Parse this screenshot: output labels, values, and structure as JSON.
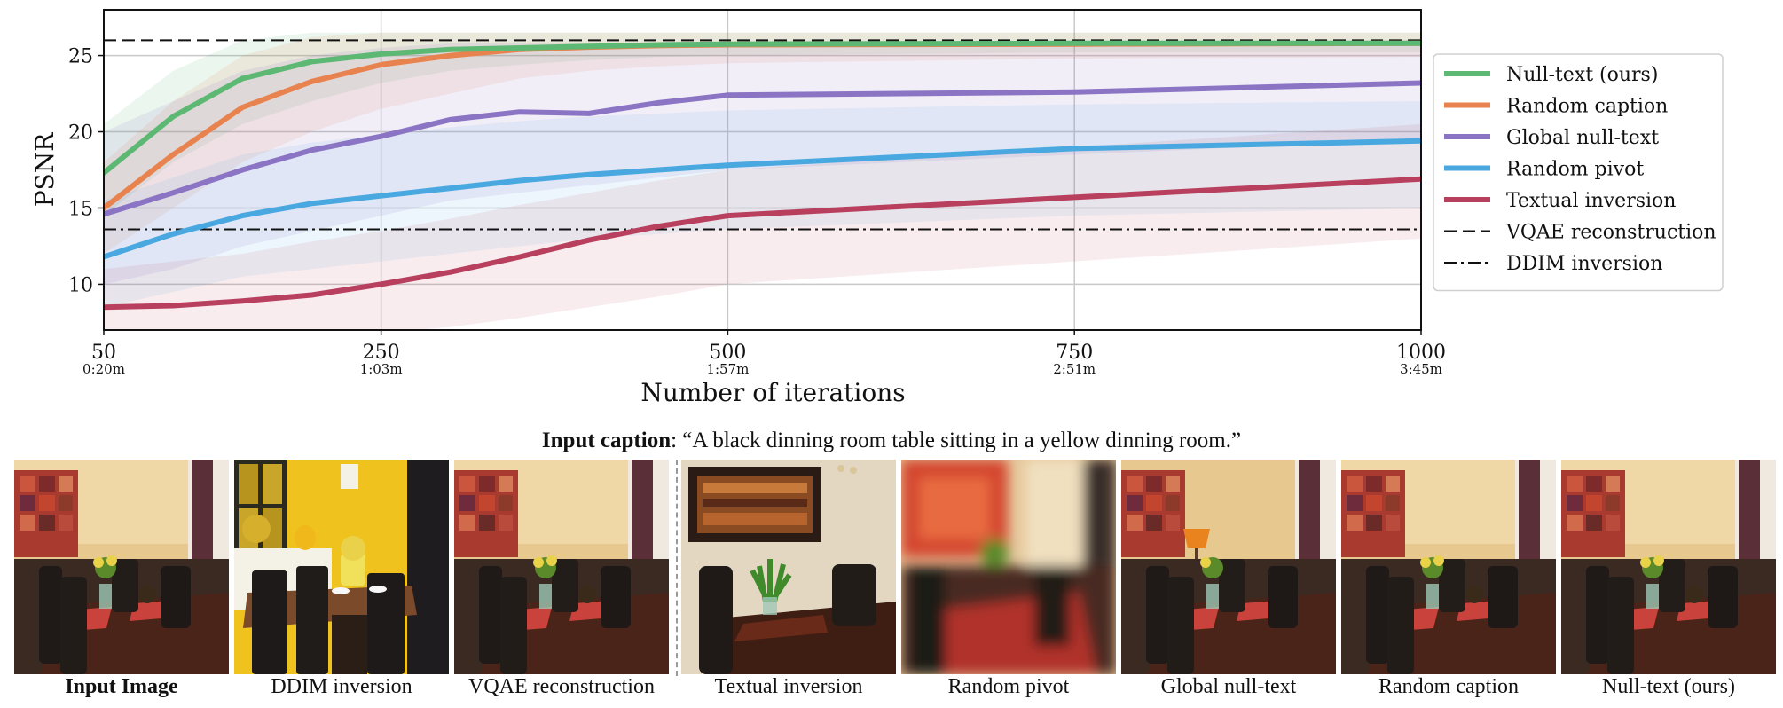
{
  "chart_data": {
    "type": "line",
    "title": "",
    "xlabel": "Number of iterations",
    "ylabel": "PSNR",
    "xlim": [
      50,
      1000
    ],
    "ylim": [
      7,
      28
    ],
    "x_ticks": [
      {
        "value": 50,
        "label": "50",
        "sublabel": "0:20m"
      },
      {
        "value": 250,
        "label": "250",
        "sublabel": "1:03m"
      },
      {
        "value": 500,
        "label": "500",
        "sublabel": "1:57m"
      },
      {
        "value": 750,
        "label": "750",
        "sublabel": "2:51m"
      },
      {
        "value": 1000,
        "label": "1000",
        "sublabel": "3:45m"
      }
    ],
    "y_ticks": [
      10,
      15,
      20,
      25
    ],
    "grid": true,
    "legend_position": "right",
    "series": [
      {
        "name": "Null-text (ours)",
        "color": "#5db874",
        "band_opacity": 0.12,
        "x": [
          50,
          100,
          150,
          200,
          250,
          300,
          350,
          400,
          450,
          500,
          750,
          1000
        ],
        "y": [
          17.3,
          21.0,
          23.5,
          24.6,
          25.1,
          25.4,
          25.5,
          25.6,
          25.7,
          25.75,
          25.8,
          25.8
        ],
        "lower": [
          14.5,
          18.0,
          20.5,
          22.0,
          23.2,
          24.0,
          24.4,
          24.7,
          24.9,
          25.0,
          25.2,
          25.2
        ],
        "upper": [
          20.5,
          24.0,
          26.0,
          26.5,
          26.5,
          26.5,
          26.5,
          26.5,
          26.5,
          26.5,
          26.5,
          26.5
        ]
      },
      {
        "name": "Random caption",
        "color": "#e8834f",
        "band_opacity": 0.12,
        "x": [
          50,
          100,
          150,
          200,
          250,
          300,
          350,
          400,
          450,
          500,
          750,
          1000
        ],
        "y": [
          15.0,
          18.5,
          21.6,
          23.3,
          24.4,
          25.0,
          25.4,
          25.55,
          25.65,
          25.7,
          25.75,
          25.8
        ],
        "lower": [
          12.0,
          15.0,
          18.0,
          20.0,
          21.5,
          22.5,
          23.5,
          24.0,
          24.3,
          24.5,
          24.8,
          24.9
        ],
        "upper": [
          18.0,
          22.0,
          25.0,
          26.2,
          26.5,
          26.5,
          26.5,
          26.5,
          26.5,
          26.5,
          26.5,
          26.5
        ]
      },
      {
        "name": "Global null-text",
        "color": "#8b74c4",
        "band_opacity": 0.12,
        "x": [
          50,
          100,
          150,
          200,
          250,
          300,
          350,
          400,
          450,
          500,
          750,
          1000
        ],
        "y": [
          14.6,
          16.0,
          17.5,
          18.8,
          19.7,
          20.8,
          21.3,
          21.2,
          21.9,
          22.4,
          22.6,
          23.2
        ],
        "lower": [
          10.0,
          11.0,
          12.5,
          13.5,
          14.5,
          15.5,
          16.0,
          16.5,
          17.0,
          17.5,
          18.5,
          19.5
        ],
        "upper": [
          20.0,
          22.0,
          24.0,
          25.0,
          25.5,
          25.8,
          25.8,
          25.8,
          25.8,
          25.8,
          25.8,
          25.8
        ]
      },
      {
        "name": "Random pivot",
        "color": "#4aa8e0",
        "band_opacity": 0.1,
        "x": [
          50,
          100,
          150,
          200,
          250,
          300,
          350,
          400,
          450,
          500,
          750,
          1000
        ],
        "y": [
          11.8,
          13.3,
          14.5,
          15.3,
          15.8,
          16.3,
          16.8,
          17.2,
          17.5,
          17.8,
          18.9,
          19.4
        ],
        "lower": [
          8.5,
          9.5,
          10.5,
          11.0,
          11.5,
          12.0,
          12.5,
          13.0,
          13.3,
          13.6,
          14.5,
          15.0
        ],
        "upper": [
          15.5,
          17.0,
          18.5,
          19.3,
          19.8,
          20.3,
          20.7,
          21.0,
          21.2,
          21.4,
          21.8,
          22.0
        ]
      },
      {
        "name": "Textual inversion",
        "color": "#b8405e",
        "band_opacity": 0.1,
        "x": [
          50,
          100,
          150,
          200,
          250,
          300,
          350,
          400,
          450,
          500,
          750,
          1000
        ],
        "y": [
          8.5,
          8.6,
          8.9,
          9.3,
          10.0,
          10.8,
          11.8,
          12.9,
          13.8,
          14.5,
          15.7,
          16.9
        ],
        "lower": [
          6.5,
          6.5,
          6.5,
          6.5,
          6.8,
          7.2,
          7.8,
          8.5,
          9.2,
          10.0,
          11.5,
          13.0
        ],
        "upper": [
          11.0,
          11.5,
          12.0,
          12.8,
          13.5,
          14.3,
          15.2,
          16.0,
          16.8,
          17.5,
          19.0,
          20.5
        ]
      }
    ],
    "reference_lines": [
      {
        "name": "VQAE reconstruction",
        "y": 26.0,
        "style": "dashed",
        "color": "#111111"
      },
      {
        "name": "DDIM inversion",
        "y": 13.6,
        "style": "dashdot",
        "color": "#111111"
      }
    ]
  },
  "caption": {
    "label": "Input caption",
    "text": ": “A black dinning room table sitting in a yellow dinning room.”"
  },
  "panels": [
    {
      "label": "Input Image",
      "bold": true,
      "scene": "sharp"
    },
    {
      "label": "DDIM inversion",
      "bold": false,
      "scene": "yellow"
    },
    {
      "label": "VQAE reconstruction",
      "bold": false,
      "scene": "sharp"
    },
    {
      "label": "Textual inversion",
      "bold": false,
      "scene": "brown"
    },
    {
      "label": "Random pivot",
      "bold": false,
      "scene": "blurry"
    },
    {
      "label": "Global null-text",
      "bold": false,
      "scene": "lamp"
    },
    {
      "label": "Random caption",
      "bold": false,
      "scene": "sharp"
    },
    {
      "label": "Null-text (ours)",
      "bold": false,
      "scene": "sharp"
    }
  ]
}
